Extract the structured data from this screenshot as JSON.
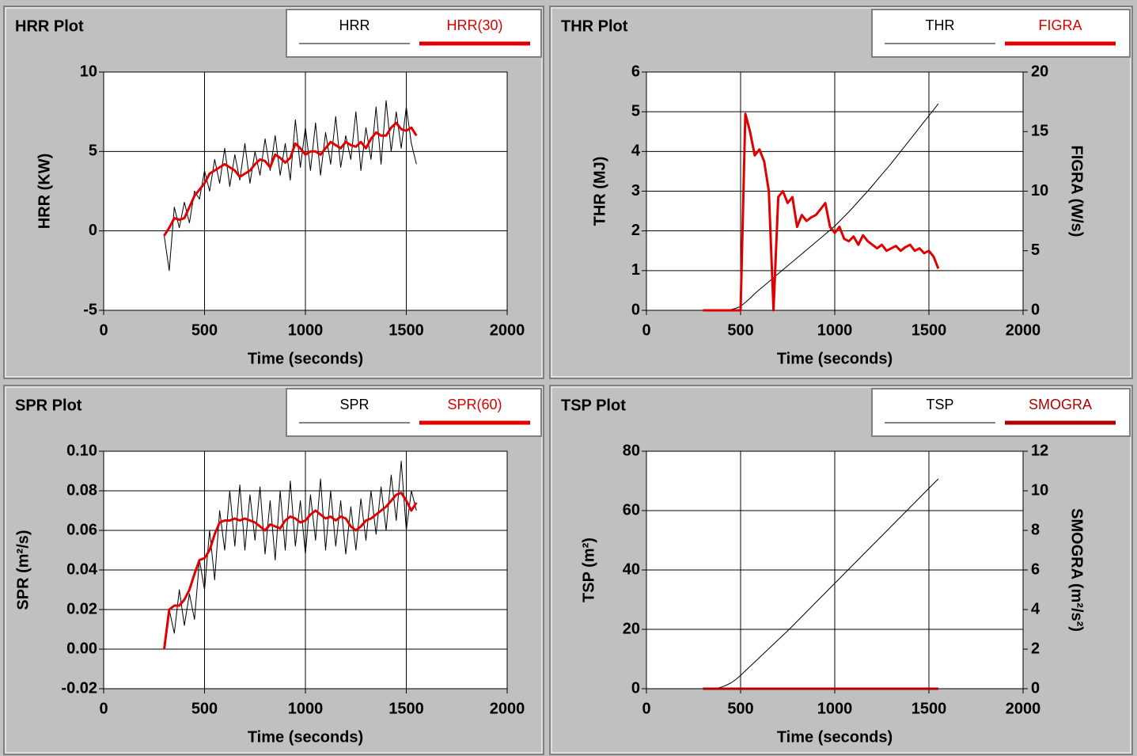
{
  "chart_data": [
    {
      "type": "line",
      "title": "HRR Plot",
      "xlabel": "Time (seconds)",
      "ylabel": "HRR (KW)",
      "xlim": [
        0,
        2000
      ],
      "xticks": [
        0,
        500,
        1000,
        1500,
        2000
      ],
      "ylim": [
        -5,
        10
      ],
      "yticks": [
        -5,
        0,
        5,
        10
      ],
      "grid": true,
      "x": [
        300,
        325,
        350,
        375,
        400,
        425,
        450,
        475,
        500,
        525,
        550,
        575,
        600,
        625,
        650,
        675,
        700,
        725,
        750,
        775,
        800,
        825,
        850,
        875,
        900,
        925,
        950,
        975,
        1000,
        1025,
        1050,
        1075,
        1100,
        1125,
        1150,
        1175,
        1200,
        1225,
        1250,
        1275,
        1300,
        1325,
        1350,
        1375,
        1400,
        1425,
        1450,
        1475,
        1500,
        1525,
        1550
      ],
      "series": [
        {
          "name": "HRR",
          "color": "#000000",
          "values": [
            -0.3,
            -2.5,
            1.5,
            0.2,
            1.8,
            0.5,
            2.5,
            2.0,
            3.8,
            2.5,
            4.5,
            3.0,
            5.2,
            2.8,
            4.8,
            3.2,
            5.5,
            3.0,
            5.0,
            3.5,
            5.8,
            3.8,
            6.0,
            3.5,
            5.5,
            3.2,
            7.0,
            4.0,
            6.5,
            3.8,
            6.8,
            3.5,
            6.2,
            4.2,
            7.2,
            4.0,
            6.0,
            4.5,
            7.5,
            3.8,
            6.5,
            4.5,
            7.8,
            4.2,
            8.2,
            5.0,
            7.5,
            5.2,
            7.8,
            5.5,
            4.2
          ]
        },
        {
          "name": "HRR(30)",
          "color": "#e00000",
          "values": [
            -0.3,
            0.2,
            0.8,
            0.7,
            0.8,
            1.5,
            2.2,
            2.6,
            3.0,
            3.6,
            3.8,
            4.0,
            4.2,
            4.0,
            3.8,
            3.4,
            3.6,
            3.8,
            4.2,
            4.5,
            4.4,
            4.0,
            4.8,
            4.6,
            4.3,
            4.6,
            5.5,
            5.2,
            4.8,
            5.0,
            5.0,
            4.8,
            5.2,
            5.6,
            5.4,
            5.2,
            5.6,
            5.4,
            5.3,
            5.6,
            5.2,
            5.8,
            6.2,
            6.0,
            6.0,
            6.5,
            6.8,
            6.4,
            6.3,
            6.5,
            6.0
          ]
        }
      ]
    },
    {
      "type": "line",
      "title": "THR Plot",
      "xlabel": "Time (seconds)",
      "ylabel": "THR (MJ)",
      "y2label": "FIGRA (W/s)",
      "xlim": [
        0,
        2000
      ],
      "xticks": [
        0,
        500,
        1000,
        1500,
        2000
      ],
      "ylim": [
        0,
        6
      ],
      "yticks": [
        0,
        1,
        2,
        3,
        4,
        5,
        6
      ],
      "y2lim": [
        0,
        20
      ],
      "y2ticks": [
        0,
        5,
        10,
        15,
        20
      ],
      "grid": true,
      "x": [
        300,
        325,
        350,
        375,
        400,
        425,
        450,
        475,
        500,
        525,
        550,
        575,
        600,
        625,
        650,
        675,
        700,
        725,
        750,
        775,
        800,
        825,
        850,
        875,
        900,
        925,
        950,
        975,
        1000,
        1025,
        1050,
        1075,
        1100,
        1125,
        1150,
        1175,
        1200,
        1225,
        1250,
        1275,
        1300,
        1325,
        1350,
        1375,
        1400,
        1425,
        1450,
        1475,
        1500,
        1525,
        1550
      ],
      "series": [
        {
          "name": "THR",
          "color": "#000000",
          "values": [
            0,
            0,
            0,
            0,
            0,
            0,
            0.02,
            0.05,
            0.1,
            0.2,
            0.3,
            0.42,
            0.52,
            0.62,
            0.72,
            0.82,
            0.92,
            1.02,
            1.12,
            1.22,
            1.32,
            1.42,
            1.52,
            1.62,
            1.72,
            1.82,
            1.92,
            2.02,
            2.12,
            2.24,
            2.36,
            2.48,
            2.61,
            2.74,
            2.87,
            3.0,
            3.14,
            3.28,
            3.42,
            3.56,
            3.7,
            3.85,
            4.0,
            4.15,
            4.3,
            4.45,
            4.6,
            4.75,
            4.9,
            5.05,
            5.2
          ]
        },
        {
          "name": "FIGRA",
          "color": "#e00000",
          "axis": "y2",
          "values": [
            0,
            0,
            0,
            0,
            0,
            0,
            0,
            0,
            0,
            16.5,
            15,
            13,
            13.5,
            12.5,
            10,
            0,
            9.5,
            10,
            9,
            9.5,
            7,
            8,
            7.5,
            7.8,
            8,
            8.5,
            9,
            7,
            6.5,
            7,
            6,
            5.8,
            6.2,
            5.5,
            6.3,
            5.8,
            5.5,
            5.2,
            5.5,
            5,
            5.2,
            5.4,
            5.0,
            5.3,
            5.5,
            5.0,
            5.2,
            4.8,
            5.0,
            4.5,
            3.5
          ]
        }
      ]
    },
    {
      "type": "line",
      "title": "SPR Plot",
      "xlabel": "Time (seconds)",
      "ylabel": "SPR (m²/s)",
      "xlim": [
        0,
        2000
      ],
      "xticks": [
        0,
        500,
        1000,
        1500,
        2000
      ],
      "ylim": [
        -0.02,
        0.1
      ],
      "yticks": [
        -0.02,
        {
          "value": 0,
          "label": "0.00"
        },
        0.02,
        0.04,
        0.06,
        0.08,
        {
          "value": 0.1,
          "label": "0.10"
        }
      ],
      "grid": true,
      "x": [
        300,
        325,
        350,
        375,
        400,
        425,
        450,
        475,
        500,
        525,
        550,
        575,
        600,
        625,
        650,
        675,
        700,
        725,
        750,
        775,
        800,
        825,
        850,
        875,
        900,
        925,
        950,
        975,
        1000,
        1025,
        1050,
        1075,
        1100,
        1125,
        1150,
        1175,
        1200,
        1225,
        1250,
        1275,
        1300,
        1325,
        1350,
        1375,
        1400,
        1425,
        1450,
        1475,
        1500,
        1525,
        1550
      ],
      "series": [
        {
          "name": "SPR",
          "color": "#000000",
          "values": [
            0.0,
            0.02,
            0.008,
            0.03,
            0.012,
            0.028,
            0.015,
            0.045,
            0.03,
            0.06,
            0.035,
            0.07,
            0.05,
            0.08,
            0.052,
            0.083,
            0.05,
            0.078,
            0.055,
            0.082,
            0.048,
            0.075,
            0.045,
            0.08,
            0.05,
            0.085,
            0.052,
            0.075,
            0.048,
            0.078,
            0.055,
            0.086,
            0.05,
            0.08,
            0.052,
            0.075,
            0.048,
            0.072,
            0.05,
            0.076,
            0.055,
            0.08,
            0.058,
            0.082,
            0.06,
            0.088,
            0.065,
            0.095,
            0.06,
            0.08,
            0.07
          ]
        },
        {
          "name": "SPR(60)",
          "color": "#e00000",
          "values": [
            0.0,
            0.02,
            0.022,
            0.022,
            0.025,
            0.03,
            0.038,
            0.045,
            0.046,
            0.05,
            0.058,
            0.064,
            0.065,
            0.065,
            0.066,
            0.065,
            0.066,
            0.065,
            0.064,
            0.062,
            0.06,
            0.063,
            0.062,
            0.061,
            0.065,
            0.067,
            0.066,
            0.064,
            0.065,
            0.068,
            0.07,
            0.068,
            0.066,
            0.067,
            0.065,
            0.067,
            0.066,
            0.062,
            0.06,
            0.062,
            0.065,
            0.066,
            0.068,
            0.07,
            0.072,
            0.075,
            0.078,
            0.079,
            0.075,
            0.07,
            0.074
          ]
        }
      ]
    },
    {
      "type": "line",
      "title": "TSP Plot",
      "xlabel": "Time (seconds)",
      "ylabel": "TSP (m²)",
      "y2label": "SMOGRA (m²/s²)",
      "xlim": [
        0,
        2000
      ],
      "xticks": [
        0,
        500,
        1000,
        1500,
        2000
      ],
      "ylim": [
        0,
        80
      ],
      "yticks": [
        0,
        20,
        40,
        60,
        80
      ],
      "y2lim": [
        0,
        12
      ],
      "y2ticks": [
        0,
        2,
        4,
        6,
        8,
        10,
        12
      ],
      "grid": true,
      "x": [
        300,
        325,
        350,
        375,
        400,
        425,
        450,
        475,
        500,
        525,
        550,
        575,
        600,
        625,
        650,
        675,
        700,
        725,
        750,
        775,
        800,
        825,
        850,
        875,
        900,
        925,
        950,
        975,
        1000,
        1025,
        1050,
        1075,
        1100,
        1125,
        1150,
        1175,
        1200,
        1225,
        1250,
        1275,
        1300,
        1325,
        1350,
        1375,
        1400,
        1425,
        1450,
        1475,
        1500,
        1525,
        1550
      ],
      "series": [
        {
          "name": "TSP",
          "color": "#000000",
          "values": [
            0,
            0,
            0,
            0.2,
            0.6,
            1.2,
            2,
            3.1,
            4.5,
            6,
            7.5,
            9,
            10.5,
            12,
            13.5,
            15,
            16.5,
            18,
            19.5,
            21.1,
            22.7,
            24.3,
            25.9,
            27.5,
            29.1,
            30.7,
            32.3,
            33.9,
            35.5,
            37.1,
            38.7,
            40.3,
            41.9,
            43.5,
            45.1,
            46.7,
            48.3,
            49.9,
            51.5,
            53.1,
            54.7,
            56.3,
            57.9,
            59.5,
            61.1,
            62.7,
            64.3,
            65.9,
            67.5,
            69.1,
            70.7
          ]
        },
        {
          "name": "SMOGRA",
          "color": "#b00000",
          "axis": "y2",
          "values": [
            0,
            0,
            0,
            0,
            0,
            0,
            0,
            0,
            0,
            0,
            0,
            0,
            0,
            0,
            0,
            0,
            0,
            0,
            0,
            0,
            0,
            0,
            0,
            0,
            0,
            0,
            0,
            0,
            0,
            0,
            0,
            0,
            0,
            0,
            0,
            0,
            0,
            0,
            0,
            0,
            0,
            0,
            0,
            0,
            0,
            0,
            0,
            0,
            0,
            0,
            0
          ]
        }
      ]
    }
  ]
}
